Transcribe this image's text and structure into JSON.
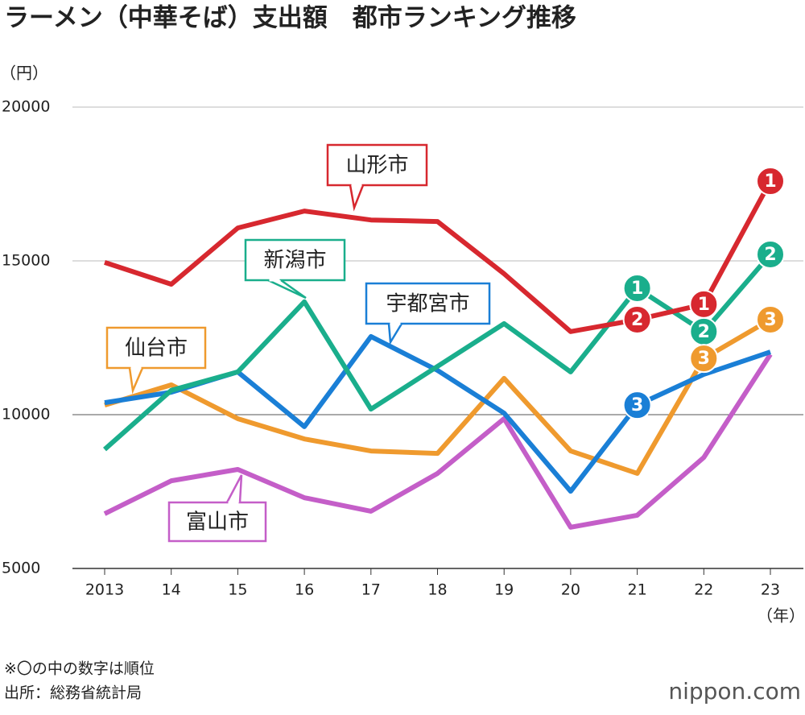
{
  "chart_data": {
    "type": "line",
    "title": "ラーメン（中華そば）支出額　都市ランキング推移",
    "y_unit": "（円）",
    "x_unit": "（年）",
    "categories": [
      "2013",
      "14",
      "15",
      "16",
      "17",
      "18",
      "19",
      "20",
      "21",
      "22",
      "23"
    ],
    "ylim": [
      5000,
      20000
    ],
    "yticks": [
      5000,
      10000,
      15000,
      20000
    ],
    "grid": true,
    "series": [
      {
        "name": "山形市",
        "color": "#d7282f",
        "values": [
          14950,
          14240,
          16070,
          16620,
          16330,
          16280,
          14580,
          12700,
          13090,
          13590,
          17590
        ],
        "ranks": [
          null,
          null,
          null,
          null,
          null,
          null,
          null,
          null,
          2,
          1,
          1
        ]
      },
      {
        "name": "新潟市",
        "color": "#1aae8c",
        "values": [
          8870,
          10790,
          11390,
          13670,
          10180,
          11570,
          12960,
          11390,
          14110,
          12700,
          15210
        ],
        "ranks": [
          null,
          null,
          null,
          null,
          null,
          null,
          null,
          null,
          1,
          2,
          2
        ]
      },
      {
        "name": "宇都宮市",
        "color": "#1a7fd6",
        "values": [
          10390,
          10730,
          11390,
          9610,
          12540,
          11440,
          10050,
          7510,
          10310,
          11310,
          12040
        ],
        "ranks": [
          null,
          null,
          null,
          null,
          null,
          null,
          null,
          null,
          3,
          null,
          null
        ]
      },
      {
        "name": "仙台市",
        "color": "#ef9a2e",
        "values": [
          10310,
          10970,
          9870,
          9210,
          8820,
          8740,
          11180,
          8820,
          8090,
          11830,
          13090
        ],
        "ranks": [
          null,
          null,
          null,
          null,
          null,
          null,
          null,
          null,
          null,
          3,
          3
        ]
      },
      {
        "name": "富山市",
        "color": "#c45ec8",
        "values": [
          6780,
          7850,
          8220,
          7300,
          6860,
          8090,
          9870,
          6340,
          6730,
          8610,
          11960
        ],
        "ranks": [
          null,
          null,
          null,
          null,
          null,
          null,
          null,
          null,
          null,
          null,
          null
        ]
      }
    ],
    "notes": [
      "※〇の中の数字は順位",
      "出所：総務省統計局"
    ],
    "brand": "nippon.com"
  }
}
